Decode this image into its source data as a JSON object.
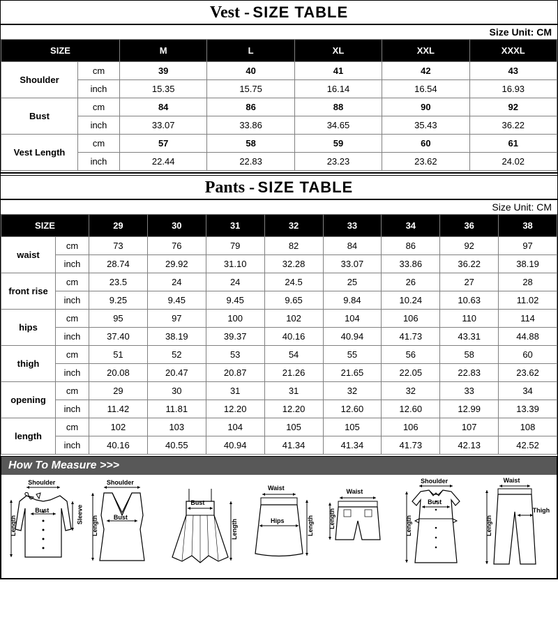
{
  "vest": {
    "title_prefix": "Vest -",
    "title_main": "SIZE TABLE",
    "unit_label": "Size Unit: CM",
    "size_header": "SIZE",
    "sizes": [
      "M",
      "L",
      "XL",
      "XXL",
      "XXXL"
    ],
    "col_widths": {
      "rowhead": 110,
      "unit": 60,
      "val": 120
    },
    "rows": [
      {
        "label": "Shoulder",
        "cm": [
          "39",
          "40",
          "41",
          "42",
          "43"
        ],
        "inch": [
          "15.35",
          "15.75",
          "16.14",
          "16.54",
          "16.93"
        ]
      },
      {
        "label": "Bust",
        "cm": [
          "84",
          "86",
          "88",
          "90",
          "92"
        ],
        "inch": [
          "33.07",
          "33.86",
          "34.65",
          "35.43",
          "36.22"
        ]
      },
      {
        "label": "Vest Length",
        "cm": [
          "57",
          "58",
          "59",
          "60",
          "61"
        ],
        "inch": [
          "22.44",
          "22.83",
          "23.23",
          "23.62",
          "24.02"
        ]
      }
    ],
    "unit_cm": "cm",
    "unit_inch": "inch"
  },
  "pants": {
    "title_prefix": "Pants -",
    "title_main": "SIZE TABLE",
    "unit_label": "Size Unit: CM",
    "size_header": "SIZE",
    "sizes": [
      "29",
      "30",
      "31",
      "32",
      "33",
      "34",
      "36",
      "38"
    ],
    "rows": [
      {
        "label": "waist",
        "cm": [
          "73",
          "76",
          "79",
          "82",
          "84",
          "86",
          "92",
          "97"
        ],
        "inch": [
          "28.74",
          "29.92",
          "31.10",
          "32.28",
          "33.07",
          "33.86",
          "36.22",
          "38.19"
        ]
      },
      {
        "label": "front rise",
        "cm": [
          "23.5",
          "24",
          "24",
          "24.5",
          "25",
          "26",
          "27",
          "28"
        ],
        "inch": [
          "9.25",
          "9.45",
          "9.45",
          "9.65",
          "9.84",
          "10.24",
          "10.63",
          "11.02"
        ]
      },
      {
        "label": "hips",
        "cm": [
          "95",
          "97",
          "100",
          "102",
          "104",
          "106",
          "110",
          "114"
        ],
        "inch": [
          "37.40",
          "38.19",
          "39.37",
          "40.16",
          "40.94",
          "41.73",
          "43.31",
          "44.88"
        ]
      },
      {
        "label": "thigh",
        "cm": [
          "51",
          "52",
          "53",
          "54",
          "55",
          "56",
          "58",
          "60"
        ],
        "inch": [
          "20.08",
          "20.47",
          "20.87",
          "21.26",
          "21.65",
          "22.05",
          "22.83",
          "23.62"
        ]
      },
      {
        "label": "opening",
        "cm": [
          "29",
          "30",
          "31",
          "31",
          "32",
          "32",
          "33",
          "34"
        ],
        "inch": [
          "11.42",
          "11.81",
          "12.20",
          "12.20",
          "12.60",
          "12.60",
          "12.99",
          "13.39"
        ]
      },
      {
        "label": "length",
        "cm": [
          "102",
          "103",
          "104",
          "105",
          "105",
          "106",
          "107",
          "108"
        ],
        "inch": [
          "40.16",
          "40.55",
          "40.94",
          "41.34",
          "41.34",
          "41.73",
          "42.13",
          "42.52"
        ]
      }
    ],
    "unit_cm": "cm",
    "unit_inch": "inch"
  },
  "howto": {
    "title": "How To Measure >>>",
    "labels": {
      "shoulder": "Shoulder",
      "bust": "Bust",
      "sleeve": "Sleeve",
      "length": "Length",
      "waist": "Waist",
      "hips": "Hips",
      "thigh": "Thigh"
    }
  },
  "colors": {
    "text": "#000000",
    "header_bg": "#000000",
    "header_fg": "#ffffff",
    "border": "#808080",
    "howto_title_bg": "#585858"
  }
}
